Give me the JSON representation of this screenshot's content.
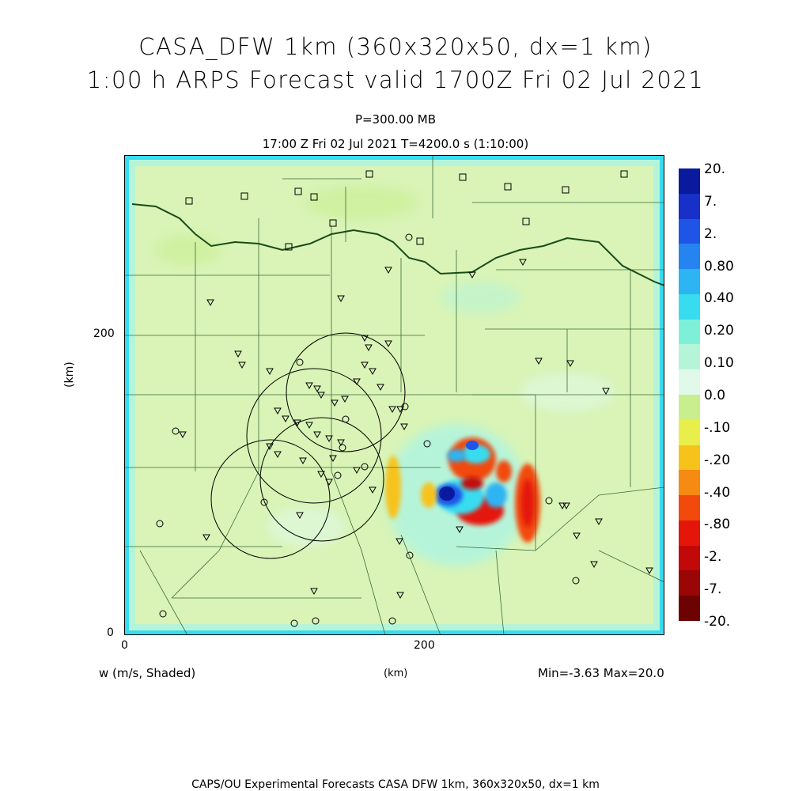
{
  "title": {
    "line1": "CASA_DFW 1km (360x320x50, dx=1 km)",
    "line2": "1:00 h ARPS Forecast valid 1700Z Fri 02 Jul 2021"
  },
  "subtitle": {
    "pressure": "P=300.00 MB",
    "time": "17:00 Z Fri 02 Jul 2021    T=4200.0 s (1:10:00)"
  },
  "axes": {
    "y_label": "(km)",
    "x_label": "(km)",
    "x_ticks": [
      "0",
      "200"
    ],
    "y_ticks": [
      "0",
      "200"
    ]
  },
  "colorbar": {
    "labels": [
      "20.",
      "7.",
      "2.",
      "0.80",
      "0.40",
      "0.20",
      "0.10",
      "0.0",
      "-.10",
      "-.20",
      "-.40",
      "-.80",
      "-2.",
      "-7.",
      "-20."
    ],
    "colors": [
      "#0a1a9e",
      "#1630c8",
      "#1f55e6",
      "#2684f0",
      "#2db4f2",
      "#38dcef",
      "#7ff0d8",
      "#b6f4d9",
      "#e0f9ea",
      "#c8ee8e",
      "#e9ef4a",
      "#f7c21a",
      "#f68a12",
      "#f24a0c",
      "#e4160a",
      "#c20808",
      "#9a0606",
      "#6d0202"
    ]
  },
  "footer": {
    "field": "w (m/s, Shaded)",
    "units": "(km)",
    "minmax": "Min=-3.63 Max=20.0",
    "credit": "CAPS/OU Experimental Forecasts  CASA DFW 1km, 360x320x50, dx=1 km"
  },
  "map_layers": {
    "stations": "triangle-markers",
    "sites": "square-markers",
    "radars": "circle-markers",
    "radar_ranges": "range-circles",
    "boundaries": "county-and-state-lines"
  }
}
